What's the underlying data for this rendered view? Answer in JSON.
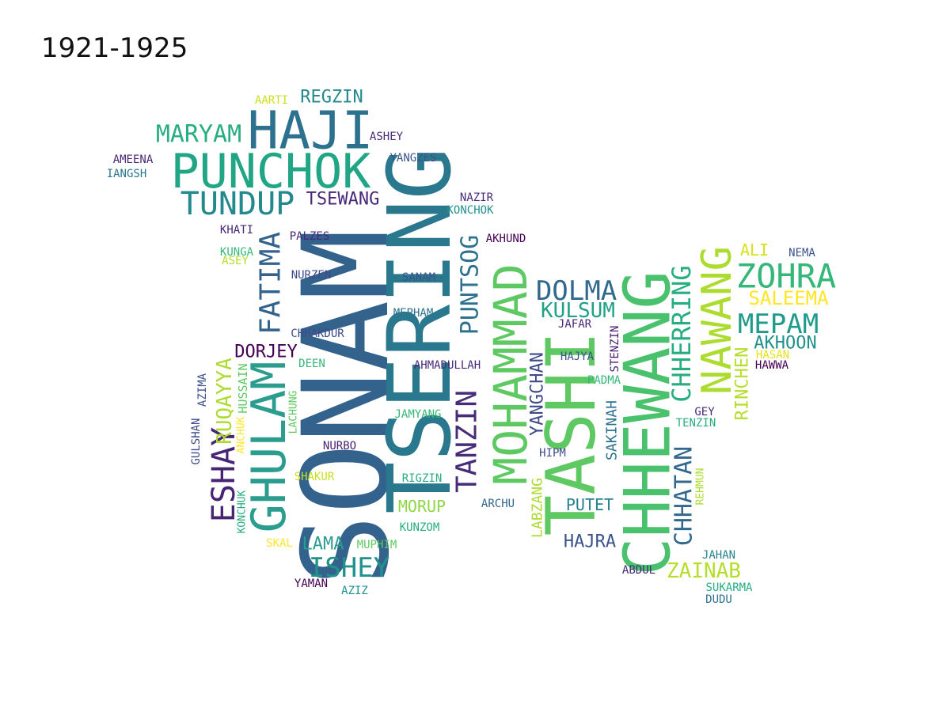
{
  "title": "1921-1925",
  "palette": [
    "#440154",
    "#3b528b",
    "#21918c",
    "#27ad81",
    "#5ec962",
    "#addc30",
    "#fde725"
  ],
  "words": [
    {
      "text": "SONAM",
      "color": "#33638d"
    },
    {
      "text": "TSERING",
      "color": "#2a788e"
    },
    {
      "text": "TASHI",
      "color": "#5ec962"
    },
    {
      "text": "CHHEWANG",
      "color": "#4ac16d"
    },
    {
      "text": "PUNCHOK",
      "color": "#21a685"
    },
    {
      "text": "MOHAMMAD",
      "color": "#5ec962"
    },
    {
      "text": "GHULAM",
      "color": "#2a9d8f"
    },
    {
      "text": "HAJI",
      "color": "#2c728e"
    },
    {
      "text": "NAWANG",
      "color": "#addc30"
    },
    {
      "text": "TANZIN",
      "color": "#472c7a"
    },
    {
      "text": "FATIMA",
      "color": "#33638d"
    },
    {
      "text": "ESHAY",
      "color": "#482475"
    },
    {
      "text": "TUNDUP",
      "color": "#23898e"
    },
    {
      "text": "CHHERRING",
      "color": "#27ad81"
    },
    {
      "text": "PUNTSOG",
      "color": "#2c728e"
    },
    {
      "text": "ZOHRA",
      "color": "#35b779"
    },
    {
      "text": "CHHATAN",
      "color": "#31688e"
    },
    {
      "text": "MARYAM",
      "color": "#27ad81"
    },
    {
      "text": "DOLMA",
      "color": "#31688e"
    },
    {
      "text": "MEPAM",
      "color": "#1e9b8a"
    },
    {
      "text": "ISHEY",
      "color": "#21918c"
    },
    {
      "text": "RUQAYYA",
      "color": "#addc30"
    },
    {
      "text": "KULSUM",
      "color": "#1fa187"
    },
    {
      "text": "RINCHEN",
      "color": "#b5de2b"
    },
    {
      "text": "SALEEMA",
      "color": "#fde725"
    },
    {
      "text": "ZAINAB",
      "color": "#b5de2b"
    },
    {
      "text": "AKHOON",
      "color": "#21918c"
    },
    {
      "text": "YANGCHAN",
      "color": "#3e4a89"
    },
    {
      "text": "HAJRA",
      "color": "#3b528b"
    },
    {
      "text": "TSEWANG",
      "color": "#482878"
    },
    {
      "text": "REGZIN",
      "color": "#23898e"
    },
    {
      "text": "DORJEY",
      "color": "#440154"
    },
    {
      "text": "LAMA",
      "color": "#2a9d8f"
    },
    {
      "text": "PUTET",
      "color": "#26828e"
    },
    {
      "text": "MORUP",
      "color": "#8fd744"
    },
    {
      "text": "SAKINAH",
      "color": "#2c728e"
    },
    {
      "text": "LABZANG",
      "color": "#addc30"
    },
    {
      "text": "ALI",
      "color": "#d8e219"
    },
    {
      "text": "HUSSAIN",
      "color": "#5ec962"
    },
    {
      "text": "LACHUNG",
      "color": "#5ec962"
    },
    {
      "text": "STENZIN",
      "color": "#481f70"
    },
    {
      "text": "REHMUN",
      "color": "#addc30"
    },
    {
      "text": "CHHAKDUR",
      "color": "#3e4a89"
    },
    {
      "text": "AZIMA",
      "color": "#3b528b"
    },
    {
      "text": "GULSHAN",
      "color": "#3e4a89"
    },
    {
      "text": "KONCHUK",
      "color": "#27ad81"
    },
    {
      "text": "ANCHUK",
      "color": "#fde725"
    },
    {
      "text": "AHMADULLAH",
      "color": "#472c7a"
    },
    {
      "text": "AMEENA",
      "color": "#482878"
    },
    {
      "text": "IANGSH",
      "color": "#2a788e"
    },
    {
      "text": "ASHEY",
      "color": "#472c7a"
    },
    {
      "text": "AARTI",
      "color": "#c8e020"
    },
    {
      "text": "YANGZES",
      "color": "#3b528b"
    },
    {
      "text": "NAZIR",
      "color": "#472c7a"
    },
    {
      "text": "KONCHOK",
      "color": "#21918c"
    },
    {
      "text": "KHATI",
      "color": "#482878"
    },
    {
      "text": "PALZES",
      "color": "#482878"
    },
    {
      "text": "KUNGA",
      "color": "#35b779"
    },
    {
      "text": "ASEY",
      "color": "#b5de2b"
    },
    {
      "text": "AKHUND",
      "color": "#440154"
    },
    {
      "text": "NURZEN",
      "color": "#3e4a89"
    },
    {
      "text": "SANAM",
      "color": "#3b528b"
    },
    {
      "text": "MEPHAM",
      "color": "#2c728e"
    },
    {
      "text": "JAFAR",
      "color": "#482878"
    },
    {
      "text": "HAJYA",
      "color": "#3b528b"
    },
    {
      "text": "DEEN",
      "color": "#35b779"
    },
    {
      "text": "PADMA",
      "color": "#35b779"
    },
    {
      "text": "JAMYANG",
      "color": "#35b779"
    },
    {
      "text": "NURBO",
      "color": "#481f70"
    },
    {
      "text": "HIPM",
      "color": "#3e4a89"
    },
    {
      "text": "SHAKUR",
      "color": "#c8e020"
    },
    {
      "text": "RIGZIN",
      "color": "#27ad81"
    },
    {
      "text": "ARCHU",
      "color": "#31688e"
    },
    {
      "text": "KUNZOM",
      "color": "#27ad81"
    },
    {
      "text": "SKAL",
      "color": "#fde725"
    },
    {
      "text": "MUPHIM",
      "color": "#5ec962"
    },
    {
      "text": "YAMAN",
      "color": "#440154"
    },
    {
      "text": "AZIZ",
      "color": "#21918c"
    },
    {
      "text": "NEMA",
      "color": "#3b528b"
    },
    {
      "text": "HASAN",
      "color": "#e5e419"
    },
    {
      "text": "HAWWA",
      "color": "#440154"
    },
    {
      "text": "GEY",
      "color": "#482878"
    },
    {
      "text": "TENZIN",
      "color": "#27ad81"
    },
    {
      "text": "JAHAN",
      "color": "#26828e"
    },
    {
      "text": "ABDUL",
      "color": "#472c7a"
    },
    {
      "text": "SUKARMA",
      "color": "#27ad81"
    },
    {
      "text": "DUDU",
      "color": "#2c728e"
    }
  ]
}
